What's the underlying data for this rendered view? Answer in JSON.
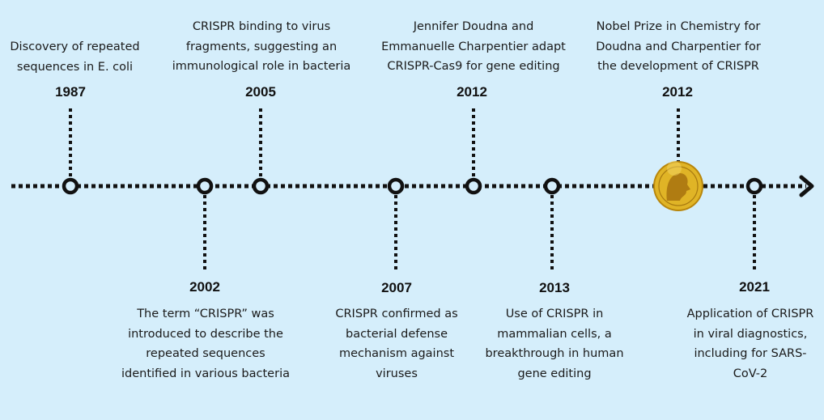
{
  "colors": {
    "background": "#d5eefb",
    "line": "#111111",
    "medal": "#e0b426"
  },
  "events": [
    {
      "year": "1987",
      "position": "above",
      "lines": [
        "Discovery of repeated",
        "sequences in E. coli"
      ]
    },
    {
      "year": "2002",
      "position": "below",
      "lines": [
        "The term “CRISPR” was",
        "introduced to describe the",
        "repeated sequences",
        "identified in various bacteria"
      ]
    },
    {
      "year": "2005",
      "position": "above",
      "lines": [
        "CRISPR binding to virus",
        "fragments, suggesting an",
        "immunological role in bacteria"
      ]
    },
    {
      "year": "2007",
      "position": "below",
      "lines": [
        "CRISPR confirmed as",
        "bacterial defense",
        "mechanism against",
        "viruses"
      ]
    },
    {
      "year": "2012",
      "position": "above",
      "lines": [
        "Jennifer Doudna and",
        "Emmanuelle Charpentier adapt",
        "CRISPR-Cas9 for gene editing"
      ]
    },
    {
      "year": "2013",
      "position": "below",
      "lines": [
        "Use of CRISPR in",
        "mammalian cells, a",
        "breakthrough in human",
        "gene editing"
      ]
    },
    {
      "year": "2012",
      "position": "above",
      "marker": "nobel-medal-icon",
      "lines": [
        "Nobel Prize in Chemistry for",
        "Doudna and Charpentier for",
        "the development of CRISPR"
      ]
    },
    {
      "year": "2021",
      "position": "below",
      "lines": [
        "Application of CRISPR",
        "in viral diagnostics,",
        "including for SARS-",
        "CoV-2"
      ]
    }
  ]
}
